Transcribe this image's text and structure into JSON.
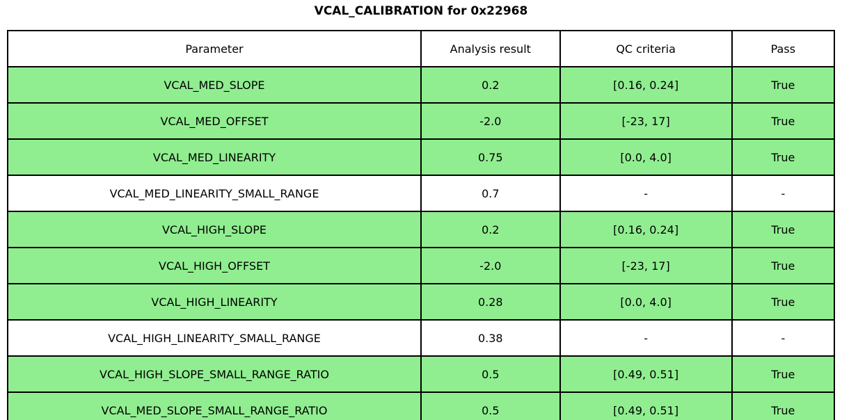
{
  "title": "VCAL_CALIBRATION for 0x22968",
  "table": {
    "columns": {
      "parameter": "Parameter",
      "result": "Analysis result",
      "criteria": "QC criteria",
      "pass": "Pass"
    },
    "rows": [
      {
        "parameter": "VCAL_MED_SLOPE",
        "result": "0.2",
        "criteria": "[0.16, 0.24]",
        "pass": "True",
        "highlight": true
      },
      {
        "parameter": "VCAL_MED_OFFSET",
        "result": "-2.0",
        "criteria": "[-23, 17]",
        "pass": "True",
        "highlight": true
      },
      {
        "parameter": "VCAL_MED_LINEARITY",
        "result": "0.75",
        "criteria": "[0.0, 4.0]",
        "pass": "True",
        "highlight": true
      },
      {
        "parameter": "VCAL_MED_LINEARITY_SMALL_RANGE",
        "result": "0.7",
        "criteria": "-",
        "pass": "-",
        "highlight": false
      },
      {
        "parameter": "VCAL_HIGH_SLOPE",
        "result": "0.2",
        "criteria": "[0.16, 0.24]",
        "pass": "True",
        "highlight": true
      },
      {
        "parameter": "VCAL_HIGH_OFFSET",
        "result": "-2.0",
        "criteria": "[-23, 17]",
        "pass": "True",
        "highlight": true
      },
      {
        "parameter": "VCAL_HIGH_LINEARITY",
        "result": "0.28",
        "criteria": "[0.0, 4.0]",
        "pass": "True",
        "highlight": true
      },
      {
        "parameter": "VCAL_HIGH_LINEARITY_SMALL_RANGE",
        "result": "0.38",
        "criteria": "-",
        "pass": "-",
        "highlight": false
      },
      {
        "parameter": "VCAL_HIGH_SLOPE_SMALL_RANGE_RATIO",
        "result": "0.5",
        "criteria": "[0.49, 0.51]",
        "pass": "True",
        "highlight": true
      },
      {
        "parameter": "VCAL_MED_SLOPE_SMALL_RANGE_RATIO",
        "result": "0.5",
        "criteria": "[0.49, 0.51]",
        "pass": "True",
        "highlight": true
      }
    ]
  },
  "colors": {
    "pass_row_background": "#90EE90",
    "no_qc_row_background": "#FFFFFF",
    "border": "#000000",
    "text": "#000000"
  }
}
